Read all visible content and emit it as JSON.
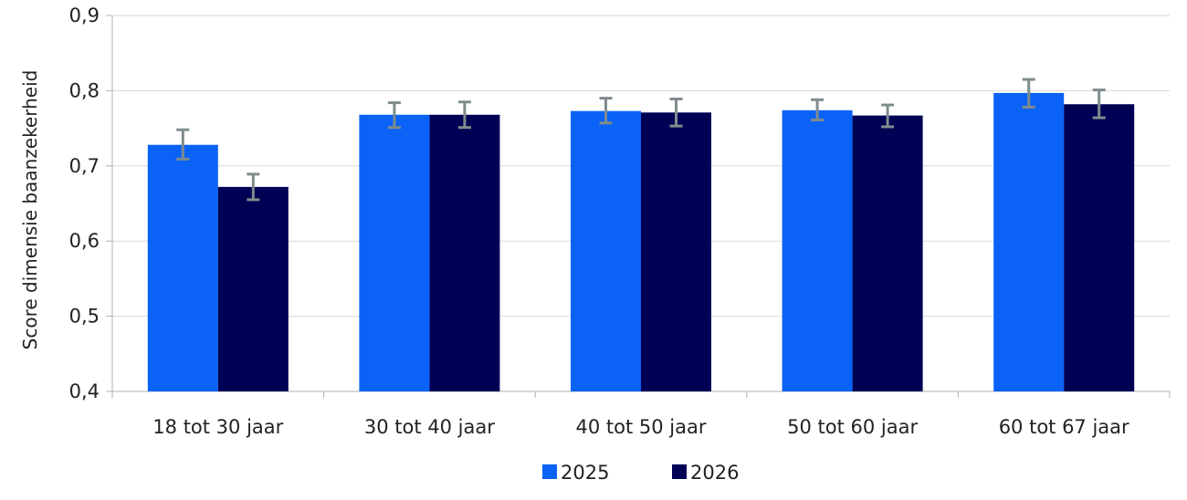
{
  "chart_data": {
    "type": "bar",
    "title": "",
    "xlabel": "",
    "ylabel": "Score dimensie baanzekerheid",
    "ylim": [
      0.4,
      0.9
    ],
    "yticks": [
      0.4,
      0.5,
      0.6,
      0.7,
      0.8,
      0.9
    ],
    "ytick_labels": [
      "0,4",
      "0,5",
      "0,6",
      "0,7",
      "0,8",
      "0,9"
    ],
    "grid": true,
    "legend_position": "bottom-center",
    "categories": [
      "18 tot 30 jaar",
      "30 tot 40 jaar",
      "40 tot 50 jaar",
      "50 tot 60 jaar",
      "60 tot 67 jaar"
    ],
    "series": [
      {
        "name": "2025",
        "color": "#0a62f7",
        "values": [
          0.728,
          0.768,
          0.773,
          0.774,
          0.797
        ],
        "error_low": [
          0.709,
          0.751,
          0.757,
          0.761,
          0.778
        ],
        "error_high": [
          0.748,
          0.784,
          0.79,
          0.788,
          0.815
        ]
      },
      {
        "name": "2026",
        "color": "#000055",
        "values": [
          0.672,
          0.768,
          0.771,
          0.767,
          0.782
        ],
        "error_low": [
          0.655,
          0.751,
          0.753,
          0.752,
          0.764
        ],
        "error_high": [
          0.689,
          0.785,
          0.789,
          0.781,
          0.801
        ]
      }
    ],
    "error_bar_color": "#7f8c8d"
  }
}
